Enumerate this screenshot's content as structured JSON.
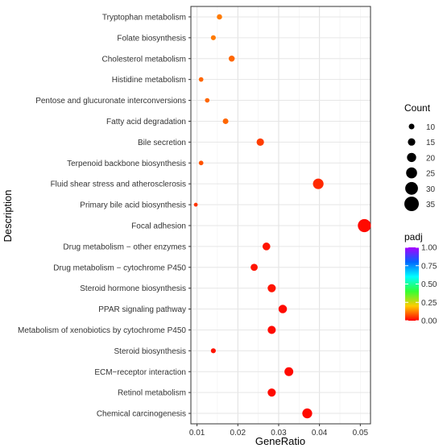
{
  "chart_data": {
    "type": "scatter",
    "xlabel": "GeneRatio",
    "ylabel": "Description",
    "xlim": [
      0.0085,
      0.0525
    ],
    "xticks": [
      0.01,
      0.02,
      0.03,
      0.04,
      0.05
    ],
    "xtick_labels": [
      "0.01",
      "0.02",
      "0.03",
      "0.04",
      "0.05"
    ],
    "grid": true,
    "points": [
      {
        "term": "Tryptophan metabolism",
        "x": 0.0155,
        "count": 9,
        "padj": 0.12
      },
      {
        "term": "Folate biosynthesis",
        "x": 0.014,
        "count": 8,
        "padj": 0.12
      },
      {
        "term": "Cholesterol metabolism",
        "x": 0.0185,
        "count": 11,
        "padj": 0.1
      },
      {
        "term": "Histidine metabolism",
        "x": 0.011,
        "count": 7,
        "padj": 0.1
      },
      {
        "term": "Pentose and glucuronate interconversions",
        "x": 0.0125,
        "count": 7,
        "padj": 0.1
      },
      {
        "term": "Fatty acid degradation",
        "x": 0.017,
        "count": 10,
        "padj": 0.1
      },
      {
        "term": "Bile secretion",
        "x": 0.0255,
        "count": 15,
        "padj": 0.06
      },
      {
        "term": "Terpenoid backbone biosynthesis",
        "x": 0.011,
        "count": 7,
        "padj": 0.08
      },
      {
        "term": "Fluid shear stress and atherosclerosis",
        "x": 0.0397,
        "count": 24,
        "padj": 0.04
      },
      {
        "term": "Primary bile acid biosynthesis",
        "x": 0.0097,
        "count": 5,
        "padj": 0.05
      },
      {
        "term": "Focal adhesion",
        "x": 0.051,
        "count": 31,
        "padj": 0.01
      },
      {
        "term": "Drug metabolism − other enzymes",
        "x": 0.027,
        "count": 16,
        "padj": 0.02
      },
      {
        "term": "Drug metabolism − cytochrome P450",
        "x": 0.024,
        "count": 14,
        "padj": 0.02
      },
      {
        "term": "Steroid hormone biosynthesis",
        "x": 0.0283,
        "count": 17,
        "padj": 0.02
      },
      {
        "term": "PPAR signaling pathway",
        "x": 0.031,
        "count": 18,
        "padj": 0.01
      },
      {
        "term": "Metabolism of xenobiotics by cytochrome P450",
        "x": 0.0283,
        "count": 17,
        "padj": 0.01
      },
      {
        "term": "Steroid biosynthesis",
        "x": 0.014,
        "count": 8,
        "padj": 0.02
      },
      {
        "term": "ECM−receptor interaction",
        "x": 0.0325,
        "count": 19,
        "padj": 0.01
      },
      {
        "term": "Retinol metabolism",
        "x": 0.0283,
        "count": 17,
        "padj": 0.01
      },
      {
        "term": "Chemical carcinogenesis",
        "x": 0.037,
        "count": 22,
        "padj": 0.01
      }
    ],
    "legend_size": {
      "title": "Count",
      "values": [
        10,
        15,
        20,
        25,
        30,
        35
      ],
      "labels": [
        "10",
        "15",
        "20",
        "25",
        "30",
        "35"
      ]
    },
    "legend_color": {
      "title": "padj",
      "range": [
        0,
        1
      ],
      "ticks": [
        1.0,
        0.75,
        0.5,
        0.25,
        0.0
      ],
      "tick_labels": [
        "1.00",
        "0.75",
        "0.50",
        "0.25",
        "0.00"
      ],
      "colors": [
        "#ff0000",
        "#ffcc00",
        "#33ff33",
        "#00ffff",
        "#0066ff",
        "#aa00ff"
      ]
    },
    "legend_placement": "right"
  }
}
